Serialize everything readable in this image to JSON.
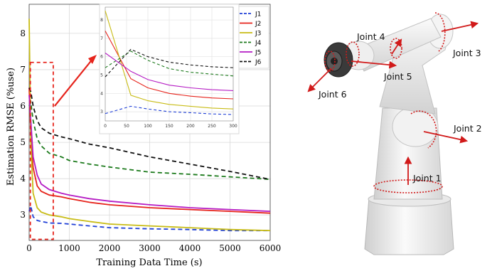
{
  "chart_data": {
    "type": "line",
    "xlabel": "Training Data Time (s)",
    "ylabel": "Estimation RMSE (%use)",
    "xlim": [
      0,
      6000
    ],
    "ylim": [
      2.3,
      8.8
    ],
    "xticks": [
      "0",
      "1000",
      "2000",
      "3000",
      "4000",
      "5000",
      "6000"
    ],
    "yticks": [
      "3",
      "4",
      "5",
      "6",
      "7",
      "8"
    ],
    "grid": true,
    "legend": "top-right",
    "x": [
      0,
      40,
      100,
      200,
      300,
      500,
      800,
      1000,
      1500,
      2000,
      3000,
      4000,
      5000,
      6000
    ],
    "series": [
      {
        "name": "J1",
        "color": "#1f3fd6",
        "dash": "6,4",
        "values": [
          3.1,
          3.25,
          2.95,
          2.85,
          2.82,
          2.78,
          2.77,
          2.75,
          2.7,
          2.65,
          2.62,
          2.6,
          2.57,
          2.57
        ]
      },
      {
        "name": "J2",
        "color": "#e6241c",
        "dash": "",
        "values": [
          6.5,
          5.2,
          4.3,
          3.8,
          3.65,
          3.55,
          3.5,
          3.45,
          3.35,
          3.28,
          3.2,
          3.15,
          3.1,
          3.05
        ]
      },
      {
        "name": "J3",
        "color": "#c8bc16",
        "dash": "",
        "values": [
          8.4,
          5.0,
          3.6,
          3.2,
          3.08,
          3.0,
          2.95,
          2.9,
          2.82,
          2.75,
          2.7,
          2.65,
          2.6,
          2.57
        ]
      },
      {
        "name": "J4",
        "color": "#1c7a1c",
        "dash": "6,4",
        "values": [
          6.0,
          6.1,
          5.6,
          5.1,
          4.9,
          4.7,
          4.6,
          4.5,
          4.4,
          4.32,
          4.18,
          4.12,
          4.05,
          3.98
        ]
      },
      {
        "name": "J5",
        "color": "#b51cc4",
        "dash": "",
        "values": [
          6.3,
          5.6,
          4.6,
          4.1,
          3.85,
          3.7,
          3.6,
          3.55,
          3.45,
          3.38,
          3.28,
          3.2,
          3.15,
          3.1
        ]
      },
      {
        "name": "J6",
        "color": "#111111",
        "dash": "6,4",
        "values": [
          6.5,
          6.4,
          6.0,
          5.6,
          5.4,
          5.25,
          5.15,
          5.1,
          4.95,
          4.85,
          4.6,
          4.4,
          4.2,
          3.98
        ]
      }
    ],
    "inset": {
      "xlim": [
        0,
        300
      ],
      "ylim": [
        2.5,
        8.7
      ],
      "xticks": [
        "0",
        "50",
        "100",
        "150",
        "200",
        "250",
        "300"
      ],
      "yticks": [
        "3",
        "4",
        "5",
        "6",
        "7",
        "8"
      ],
      "x": [
        0,
        60,
        100,
        150,
        200,
        250,
        300
      ],
      "series": [
        {
          "name": "J1",
          "values": [
            2.9,
            3.3,
            3.15,
            3.0,
            2.95,
            2.88,
            2.85
          ]
        },
        {
          "name": "J2",
          "values": [
            7.4,
            4.8,
            4.3,
            4.0,
            3.85,
            3.75,
            3.7
          ]
        },
        {
          "name": "J3",
          "values": [
            8.5,
            3.9,
            3.6,
            3.4,
            3.3,
            3.2,
            3.15
          ]
        },
        {
          "name": "J4",
          "values": [
            5.4,
            6.3,
            5.8,
            5.35,
            5.15,
            5.05,
            4.95
          ]
        },
        {
          "name": "J5",
          "values": [
            6.2,
            5.2,
            4.75,
            4.45,
            4.3,
            4.2,
            4.15
          ]
        },
        {
          "name": "J6",
          "values": [
            4.9,
            6.4,
            6.0,
            5.7,
            5.55,
            5.45,
            5.4
          ]
        }
      ]
    }
  },
  "robot": {
    "labels": [
      "Joint 1",
      "Joint 2",
      "Joint 3",
      "Joint 4",
      "Joint 5",
      "Joint 6"
    ],
    "arrow_color": "#d11a1a"
  }
}
